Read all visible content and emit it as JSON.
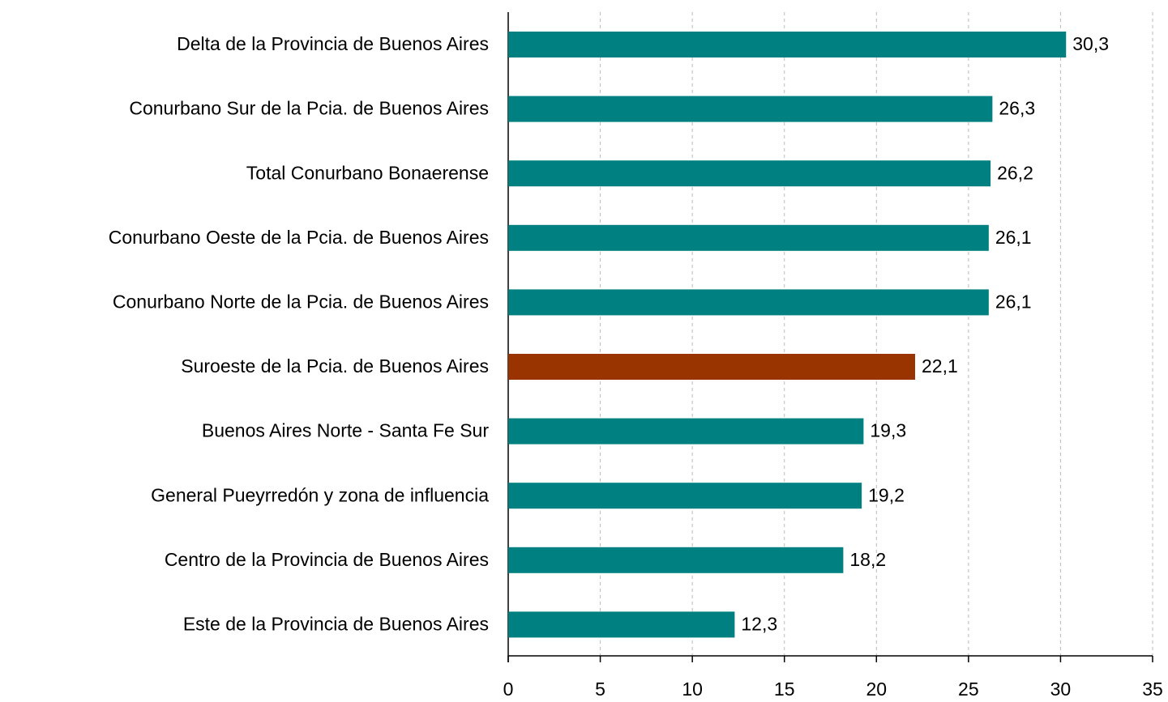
{
  "chart_data": {
    "type": "barh",
    "categories": [
      "Delta de la Provincia de Buenos Aires",
      "Conurbano Sur de la Pcia. de Buenos Aires",
      "Total Conurbano Bonaerense",
      "Conurbano Oeste de la Pcia. de Buenos Aires",
      "Conurbano Norte de la Pcia. de Buenos Aires",
      "Suroeste de la Pcia. de Buenos Aires",
      "Buenos Aires Norte - Santa Fe Sur",
      "General Pueyrredón y zona de influencia",
      "Centro de la Provincia de Buenos Aires",
      "Este de la Provincia de Buenos Aires"
    ],
    "values": [
      30.3,
      26.3,
      26.2,
      26.1,
      26.1,
      22.1,
      19.3,
      19.2,
      18.2,
      12.3
    ],
    "value_labels": [
      "30,3",
      "26,3",
      "26,2",
      "26,1",
      "26,1",
      "22,1",
      "19,3",
      "19,2",
      "18,2",
      "12,3"
    ],
    "colors": [
      "#008080",
      "#008080",
      "#008080",
      "#008080",
      "#008080",
      "#993300",
      "#008080",
      "#008080",
      "#008080",
      "#008080"
    ],
    "xlim": [
      0,
      35
    ],
    "xticks": [
      0,
      5,
      10,
      15,
      20,
      25,
      30,
      35
    ],
    "grid": true
  }
}
